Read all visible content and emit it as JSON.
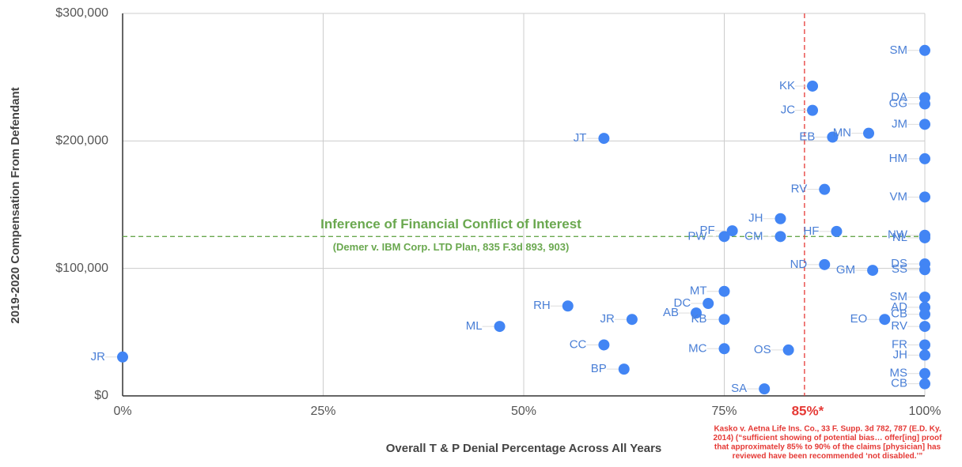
{
  "chart_data": {
    "type": "scatter",
    "x_label": "Overall T & P Denial Percentage Across All Years",
    "y_label": "2019-2020 Compensation From Defendant",
    "color": "#4285f4",
    "grid": true,
    "xlim": [
      0,
      100
    ],
    "ylim": [
      0,
      300000
    ],
    "xticks": [
      {
        "value": 0,
        "label": "0%"
      },
      {
        "value": 25,
        "label": "25%"
      },
      {
        "value": 50,
        "label": "50%"
      },
      {
        "value": 75,
        "label": "75%"
      },
      {
        "value": 100,
        "label": "100%"
      }
    ],
    "yticks": [
      {
        "value": 0,
        "label": "$0"
      },
      {
        "value": 100000,
        "label": "$100,000"
      },
      {
        "value": 200000,
        "label": "$200,000"
      },
      {
        "value": 300000,
        "label": "$300,000"
      }
    ],
    "point_labels": [
      "SM",
      "KK",
      "DA",
      "GG",
      "JM",
      "JC",
      "JT",
      "EB",
      "MN",
      "HM",
      "RV",
      "VM",
      "JH",
      "PF",
      "PW",
      "CM",
      "HF",
      "NW",
      "NL",
      "ND",
      "GM",
      "DS",
      "SS",
      "MT",
      "SM",
      "DC",
      "RH",
      "AD",
      "AB",
      "CB",
      "KB",
      "JR",
      "EO",
      "RV",
      "ML",
      "CC",
      "MC",
      "OS",
      "FR",
      "JH",
      "JR",
      "BP",
      "MS",
      "CB",
      "SA"
    ],
    "x": [
      100,
      86,
      100,
      100,
      100,
      86,
      60,
      88.5,
      93,
      100,
      87.5,
      100,
      82,
      76,
      75,
      82,
      89,
      100,
      100,
      87.5,
      93.5,
      100,
      100,
      75,
      100,
      73,
      55.5,
      100,
      71.5,
      100,
      75,
      63.5,
      95,
      100,
      47,
      60,
      75,
      83,
      100,
      100,
      0,
      62.5,
      100,
      100,
      80
    ],
    "values": [
      271000,
      243000,
      234000,
      229000,
      213000,
      224000,
      202000,
      203000,
      206000,
      186000,
      162000,
      156000,
      139000,
      129500,
      125000,
      125000,
      129000,
      126000,
      124000,
      103000,
      98500,
      103500,
      99000,
      82000,
      77500,
      72500,
      70500,
      69500,
      65000,
      64000,
      60000,
      60000,
      60000,
      54500,
      54500,
      40000,
      37000,
      36000,
      40000,
      32000,
      30500,
      21000,
      17500,
      9500,
      5500
    ],
    "reference_lines": [
      {
        "axis": "y",
        "value": 125000,
        "color": "#6aa84f",
        "label": "Inference of Financial Conflict of Interest",
        "sublabel": "(Demer v. IBM Corp. LTD Plan, 835 F.3d 893, 903)"
      },
      {
        "axis": "x",
        "value": 85,
        "color": "#e53935",
        "label": "85%*",
        "note": [
          "Kasko v. Aetna Life Ins. Co., 33 F. Supp. 3d 782, 787 (E.D. Ky.",
          "2014) (“sufficient showing of potential bias… offer[ing] proof",
          "that approximately 85% to 90% of the claims [physician] has",
          "reviewed have been recommended ‘not disabled.’”"
        ]
      }
    ]
  }
}
